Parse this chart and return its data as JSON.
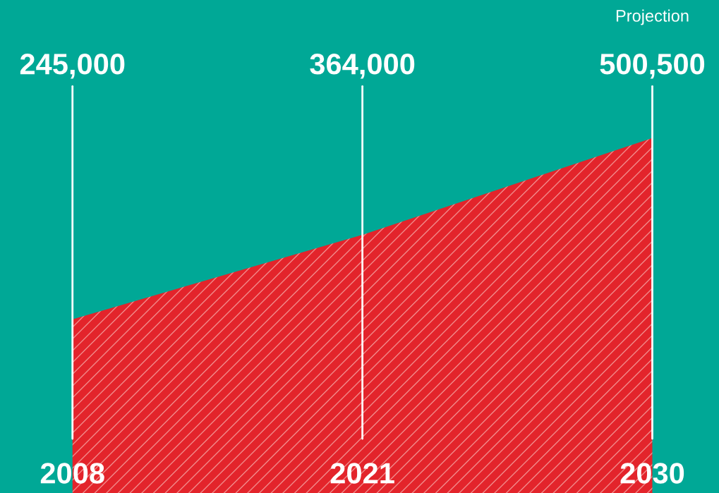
{
  "chart_data": {
    "type": "area",
    "categories": [
      "2008",
      "2021",
      "2030"
    ],
    "series": [
      {
        "color": "#e3242b",
        "values": [
          245000,
          364000,
          500500
        ],
        "value_labels": [
          "245,000",
          "364,000",
          "500,500"
        ]
      }
    ],
    "tick_labels": "x",
    "grid": "x",
    "legend": false,
    "annotations": [
      "Projection"
    ]
  }
}
